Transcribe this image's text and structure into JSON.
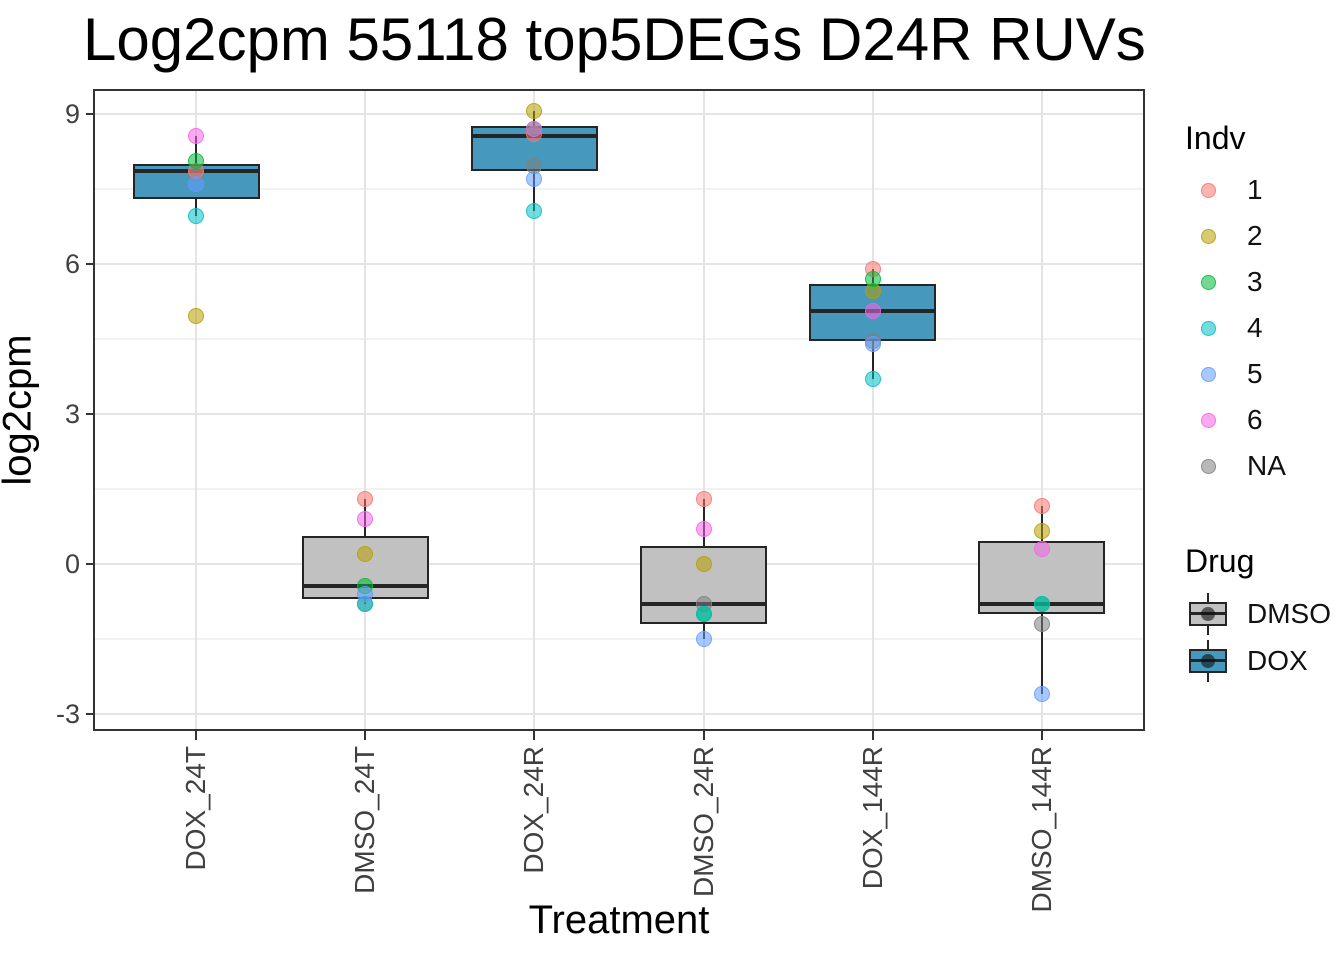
{
  "title": "Log2cpm 55118 top5DEGs D24R RUVs",
  "chart_data": {
    "type": "boxplot",
    "title": "Log2cpm 55118 top5DEGs D24R RUVs",
    "xlabel": "Treatment",
    "ylabel": "log2cpm",
    "categories": [
      "DOX_24T",
      "DMSO_24T",
      "DOX_24R",
      "DMSO_24R",
      "DOX_144R",
      "DMSO_144R"
    ],
    "ylim": [
      -3.3,
      9.45
    ],
    "y_major_ticks": [
      9,
      6,
      3,
      0,
      -3
    ],
    "y_minor_gridlines": [
      7.5,
      4.5,
      1.5,
      -1.5
    ],
    "grid": "horizontal major+minor, vertical major at categories",
    "legend_position": "right",
    "box_width_fraction": 0.75,
    "box_fill_colors": {
      "DMSO": "#C1C1C1",
      "DOX": "#4699BC"
    },
    "box_stroke_color": "#252525",
    "point_alpha": 0.55,
    "boxes": [
      {
        "category": "DOX_24T",
        "drug": "DOX",
        "whisker_low": 6.95,
        "q1": 7.3,
        "median": 7.85,
        "q3": 8.0,
        "whisker_high": 8.55
      },
      {
        "category": "DMSO_24T",
        "drug": "DMSO",
        "whisker_low": -0.8,
        "q1": -0.7,
        "median": -0.45,
        "q3": 0.55,
        "whisker_high": 1.3
      },
      {
        "category": "DOX_24R",
        "drug": "DOX",
        "whisker_low": 7.05,
        "q1": 7.85,
        "median": 8.55,
        "q3": 8.75,
        "whisker_high": 9.05
      },
      {
        "category": "DMSO_24R",
        "drug": "DMSO",
        "whisker_low": -1.5,
        "q1": -1.2,
        "median": -0.8,
        "q3": 0.35,
        "whisker_high": 1.3
      },
      {
        "category": "DOX_144R",
        "drug": "DOX",
        "whisker_low": 3.7,
        "q1": 4.45,
        "median": 5.05,
        "q3": 5.6,
        "whisker_high": 5.9
      },
      {
        "category": "DMSO_144R",
        "drug": "DMSO",
        "whisker_low": -2.6,
        "q1": -1.0,
        "median": -0.8,
        "q3": 0.45,
        "whisker_high": 1.15
      }
    ],
    "point_series": [
      {
        "indv": "NA",
        "color": "#7F7F7F",
        "values": [
          7.8,
          -0.8,
          7.95,
          -0.8,
          4.45,
          -1.2
        ]
      },
      {
        "indv": "1",
        "color": "#F8766D",
        "values": [
          7.85,
          1.3,
          8.6,
          1.3,
          5.9,
          1.15
        ]
      },
      {
        "indv": "2",
        "color": "#B79F00",
        "values": [
          4.95,
          0.2,
          9.05,
          0.0,
          5.45,
          0.65
        ]
      },
      {
        "indv": "3",
        "color": "#00BA38",
        "values": [
          8.05,
          -0.45,
          8.7,
          -1.0,
          5.7,
          -0.8
        ]
      },
      {
        "indv": "4",
        "color": "#00BFC4",
        "values": [
          6.95,
          -0.8,
          7.05,
          -1.0,
          3.7,
          -0.8
        ]
      },
      {
        "indv": "5",
        "color": "#619CFF",
        "values": [
          7.6,
          -0.6,
          7.7,
          -1.5,
          4.4,
          -2.6
        ]
      },
      {
        "indv": "6",
        "color": "#F564E3",
        "values": [
          8.55,
          0.9,
          8.7,
          0.7,
          5.05,
          0.3
        ]
      }
    ]
  },
  "legends": {
    "indv": {
      "title": "Indv",
      "items": [
        {
          "label": "1",
          "color": "#F8766D"
        },
        {
          "label": "2",
          "color": "#B79F00"
        },
        {
          "label": "3",
          "color": "#00BA38"
        },
        {
          "label": "4",
          "color": "#00BFC4"
        },
        {
          "label": "5",
          "color": "#619CFF"
        },
        {
          "label": "6",
          "color": "#F564E3"
        },
        {
          "label": "NA",
          "color": "#7F7F7F"
        }
      ]
    },
    "drug": {
      "title": "Drug",
      "items": [
        {
          "label": "DMSO",
          "fill": "#C1C1C1"
        },
        {
          "label": "DOX",
          "fill": "#4699BC"
        }
      ]
    }
  }
}
